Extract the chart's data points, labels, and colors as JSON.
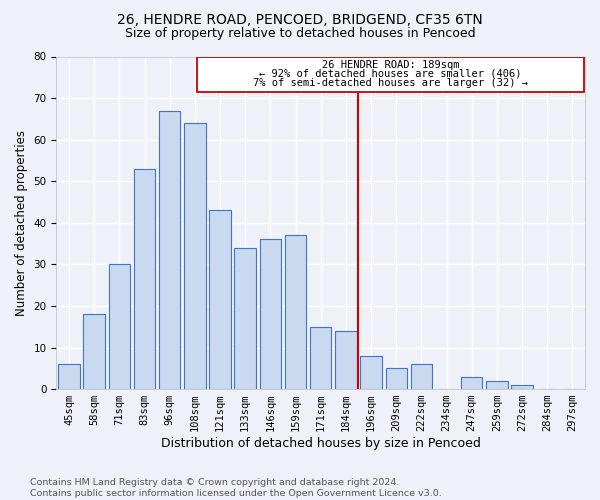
{
  "title_line1": "26, HENDRE ROAD, PENCOED, BRIDGEND, CF35 6TN",
  "title_line2": "Size of property relative to detached houses in Pencoed",
  "xlabel": "Distribution of detached houses by size in Pencoed",
  "ylabel": "Number of detached properties",
  "footnote": "Contains HM Land Registry data © Crown copyright and database right 2024.\nContains public sector information licensed under the Open Government Licence v3.0.",
  "bar_labels": [
    "45sqm",
    "58sqm",
    "71sqm",
    "83sqm",
    "96sqm",
    "108sqm",
    "121sqm",
    "133sqm",
    "146sqm",
    "159sqm",
    "171sqm",
    "184sqm",
    "196sqm",
    "209sqm",
    "222sqm",
    "234sqm",
    "247sqm",
    "259sqm",
    "272sqm",
    "284sqm",
    "297sqm"
  ],
  "bar_values": [
    6,
    18,
    30,
    53,
    67,
    64,
    43,
    34,
    36,
    37,
    15,
    14,
    8,
    5,
    6,
    0,
    3,
    2,
    1,
    0,
    0
  ],
  "bar_color": "#c9d9f0",
  "bar_edge_color": "#4472c4",
  "annotation_text_line1": "26 HENDRE ROAD: 189sqm",
  "annotation_text_line2": "← 92% of detached houses are smaller (406)",
  "annotation_text_line3": "7% of semi-detached houses are larger (32) →",
  "annotation_box_color": "#cc0000",
  "vline_color": "#cc0000",
  "ylim": [
    0,
    80
  ],
  "yticks": [
    0,
    10,
    20,
    30,
    40,
    50,
    60,
    70,
    80
  ],
  "background_color": "#eef2f8",
  "grid_color": "#ffffff",
  "title1_fontsize": 10,
  "title2_fontsize": 9,
  "xlabel_fontsize": 9,
  "ylabel_fontsize": 8.5,
  "tick_fontsize": 7.5,
  "annotation_fontsize": 7.5,
  "footnote_fontsize": 6.8
}
